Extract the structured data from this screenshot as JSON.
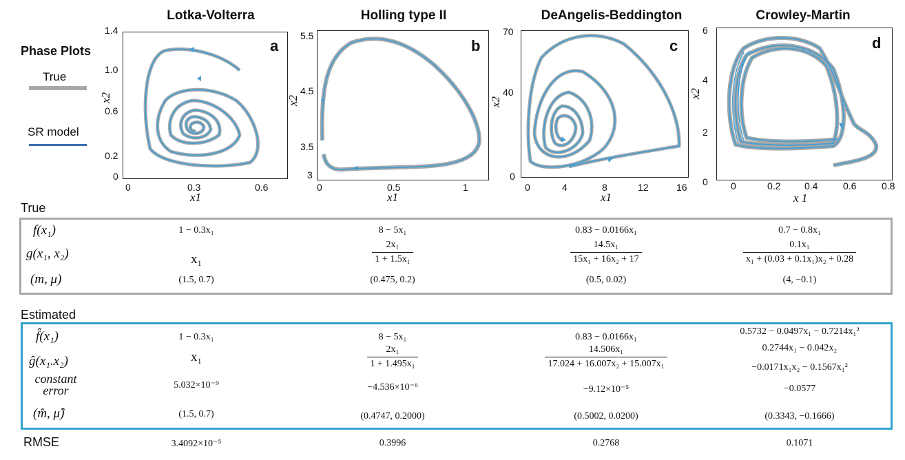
{
  "legend": {
    "title": "Phase Plots",
    "true_label": "True",
    "sr_label": "SR model",
    "true_color": "#a8a8a8",
    "sr_color": "#3d6fb3"
  },
  "chart_data": [
    {
      "type": "line",
      "title": "Lotka-Volterra",
      "panel": "a",
      "xlabel": "x1",
      "ylabel": "x2",
      "xlim": [
        0,
        0.7
      ],
      "ylim": [
        0,
        1.4
      ],
      "xticks": [
        "0",
        "0.3",
        "0.6"
      ],
      "yticks": [
        "0",
        "0.2",
        "0.6",
        "1.0",
        "1.4"
      ],
      "series": [
        {
          "values": "spiral trajectory from (0.5, 1.0) inward to equilibrium near (0.22, 0.45)"
        }
      ]
    },
    {
      "type": "line",
      "title": "Holling type II",
      "panel": "b",
      "xlabel": "x1",
      "ylabel": "x2",
      "xlim": [
        0,
        1.2
      ],
      "ylim": [
        2.9,
        5.6
      ],
      "xticks": [
        "0",
        "0.5",
        "1"
      ],
      "yticks": [
        "3",
        "3.5",
        "4.5",
        "5.5"
      ],
      "series": [
        {
          "values": "limit cycle, max x1 about 1.08, x2 range about 3.1 to 5.45"
        }
      ]
    },
    {
      "type": "line",
      "title": "DeAngelis-Beddington",
      "panel": "c",
      "xlabel": "x1",
      "ylabel": "x2",
      "xlim": [
        -1,
        16.5
      ],
      "ylim": [
        0,
        70
      ],
      "xticks": [
        "0",
        "4",
        "8",
        "12",
        "16"
      ],
      "yticks": [
        "0",
        "40",
        "70"
      ],
      "series": [
        {
          "values": "inward spiral from (4, 6) with large loop reaching about x1=15, x2=67"
        }
      ]
    },
    {
      "type": "line",
      "title": "Crowley-Martin",
      "panel": "d",
      "xlabel": "x 1",
      "ylabel": "x2",
      "xlim": [
        -0.05,
        0.8
      ],
      "ylim": [
        0,
        6
      ],
      "xticks": [
        "0",
        "0.2",
        "0.4",
        "0.6",
        "0.8"
      ],
      "yticks": [
        "0",
        "2",
        "4",
        "6"
      ],
      "series": [
        {
          "values": "limit cycle, x1 about 0 to 0.76, x2 about 1.3 to 5.5"
        }
      ]
    }
  ],
  "true_section": {
    "label": "True",
    "row_labels": {
      "f": "f(x₁)",
      "g": "g(x₁, x₂)",
      "m": "(m, μ)"
    },
    "columns": [
      {
        "f": "1 − 0.3x₁",
        "g_plain": "x₁",
        "m": "(1.5,  0.7)"
      },
      {
        "f": "8 − 5x₁",
        "g_num": "2x₁",
        "g_den": "1 + 1.5x₁",
        "m": "(0.475,  0.2)"
      },
      {
        "f": "0.83 − 0.0166x₁",
        "g_num": "14.5x₁",
        "g_den": "15x₁ + 16x₂ + 17",
        "m": "(0.5,  0.02)"
      },
      {
        "f": "0.7 − 0.8x₁",
        "g_num": "0.1x₁",
        "g_den": "x₁ + (0.03 + 0.1x₁)x₂ + 0.28",
        "m": "(4, −0.1)"
      }
    ]
  },
  "est_section": {
    "label": "Estimated",
    "row_labels": {
      "f": "f̂(x₁)",
      "g": "ĝ(x₁.x₂)",
      "c1": "constant",
      "c2": "error",
      "m": "(m̂, μ̂)"
    },
    "columns": [
      {
        "f": "1 − 0.3x₁",
        "g_plain": "x₁",
        "c": "5.032×10⁻⁹",
        "m": "(1.5,  0.7)"
      },
      {
        "f": "8 − 5x₁",
        "g_num": "2x₁",
        "g_den": "1 + 1.495x₁",
        "c": "−4.536×10⁻⁶",
        "m": "(0.4747,  0.2000)"
      },
      {
        "f": "0.83 − 0.0166x₁",
        "g_num": "14.506x₁",
        "g_den": "17.024 + 16.007x₂ + 15.007x₁",
        "c": "−9.12×10⁻⁵",
        "m": "(0.5002,  0.0200)"
      },
      {
        "f": "0.5732 − 0.0497x₁ − 0.7214x₁²",
        "g_line1": "0.2744x₁ − 0.042x₂",
        "g_line2": "−0.0171x₁x₂ − 0.1567x₁²",
        "c": "−0.0577",
        "m": "(0.3343, −0.1666)"
      }
    ]
  },
  "rmse": {
    "label": "RMSE",
    "values": [
      "3.4092×10⁻⁵",
      "0.3996",
      "0.2768",
      "0.1071"
    ]
  }
}
